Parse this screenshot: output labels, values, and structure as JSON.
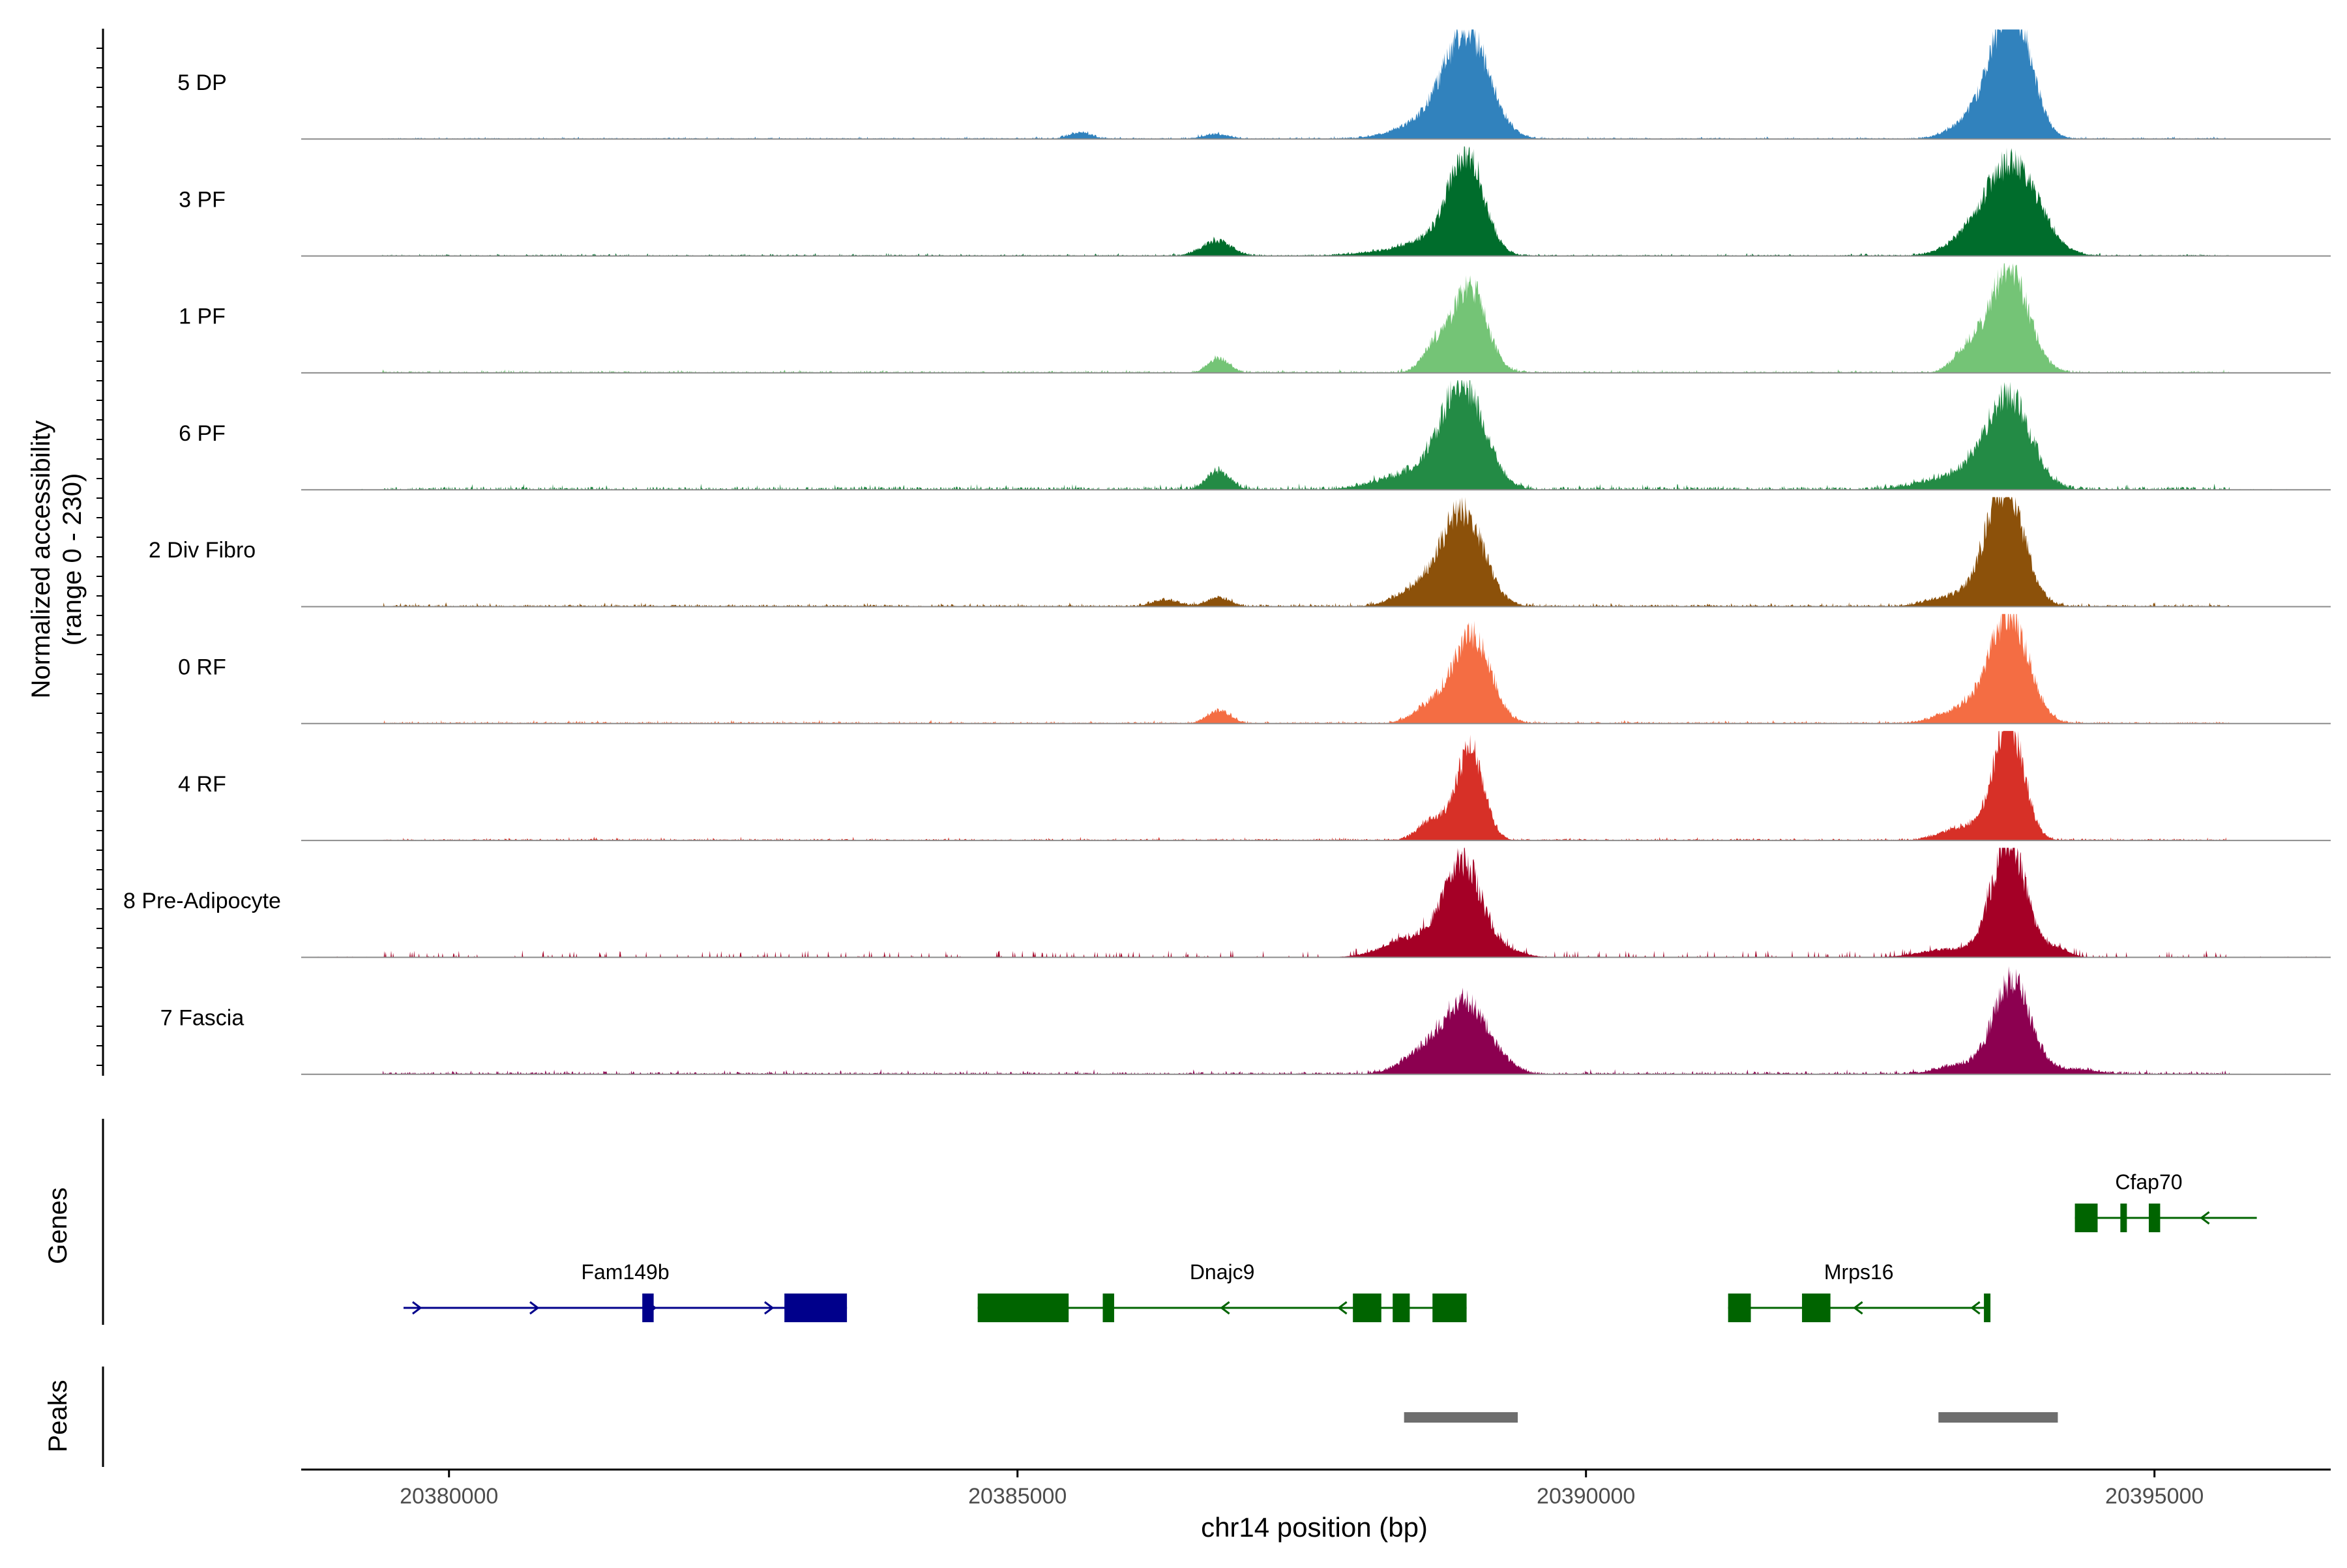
{
  "chart_data": {
    "type": "area",
    "title": "",
    "ylabel": "Normalized accessibility",
    "ylabel_range": "(range 0 - 230)",
    "xlabel": "chr14 position (bp)",
    "xlim": [
      20378700,
      20396550
    ],
    "ylim": [
      0,
      230
    ],
    "x_ticks": [
      {
        "value": 20380000,
        "label": "20380000"
      },
      {
        "value": 20385000,
        "label": "20385000"
      },
      {
        "value": 20390000,
        "label": "20390000"
      },
      {
        "value": 20395000,
        "label": "20395000"
      }
    ],
    "tracks": [
      {
        "name": "5 DP",
        "color": "#3182bd",
        "peaks": [
          [
            20385550,
            14,
            100
          ],
          [
            20386750,
            10,
            120
          ],
          [
            20388700,
            45,
            300
          ],
          [
            20388960,
            205,
            190
          ],
          [
            20393300,
            18,
            160
          ],
          [
            20393630,
            85,
            200
          ],
          [
            20393760,
            225,
            160
          ]
        ],
        "baseline": 2.0,
        "noise": 1.2
      },
      {
        "name": "3 PF",
        "color": "#006d2c",
        "peaks": [
          [
            20386750,
            32,
            130
          ],
          [
            20388200,
            6,
            300
          ],
          [
            20388680,
            35,
            260
          ],
          [
            20388950,
            205,
            150
          ],
          [
            20393350,
            25,
            200
          ],
          [
            20393750,
            200,
            230
          ]
        ],
        "baseline": 2.0,
        "noise": 1.2
      },
      {
        "name": "1 PF",
        "color": "#74c476",
        "peaks": [
          [
            20386770,
            32,
            90
          ],
          [
            20388650,
            50,
            100
          ],
          [
            20388970,
            190,
            150
          ],
          [
            20393350,
            45,
            120
          ],
          [
            20393720,
            225,
            170
          ]
        ],
        "baseline": 2.5,
        "noise": 1.5
      },
      {
        "name": "6 PF",
        "color": "#238b45",
        "peaks": [
          [
            20386770,
            40,
            100
          ],
          [
            20388500,
            35,
            300
          ],
          [
            20388920,
            215,
            190
          ],
          [
            20393300,
            32,
            300
          ],
          [
            20393720,
            195,
            190
          ]
        ],
        "baseline": 4.5,
        "noise": 2.5
      },
      {
        "name": "2 Div Fibro",
        "color": "#8c510a",
        "peaks": [
          [
            20386300,
            14,
            120
          ],
          [
            20386770,
            20,
            100
          ],
          [
            20388550,
            40,
            200
          ],
          [
            20388920,
            200,
            180
          ],
          [
            20393200,
            20,
            200
          ],
          [
            20393680,
            250,
            170
          ]
        ],
        "baseline": 3.0,
        "noise": 1.8
      },
      {
        "name": "0 RF",
        "color": "#f46d43",
        "peaks": [
          [
            20386770,
            28,
            100
          ],
          [
            20388650,
            40,
            150
          ],
          [
            20389000,
            190,
            160
          ],
          [
            20393300,
            30,
            200
          ],
          [
            20393720,
            230,
            170
          ]
        ],
        "baseline": 2.5,
        "noise": 1.5
      },
      {
        "name": "4 RF",
        "color": "#d73027",
        "peaks": [
          [
            20388650,
            45,
            120
          ],
          [
            20388980,
            195,
            120
          ],
          [
            20393350,
            30,
            200
          ],
          [
            20393720,
            250,
            130
          ]
        ],
        "baseline": 2.5,
        "noise": 1.5
      },
      {
        "name": "8 Pre-Adipocyte",
        "color": "#a50026",
        "peaks": [
          [
            20388500,
            45,
            250
          ],
          [
            20388920,
            200,
            160
          ],
          [
            20389300,
            15,
            150
          ],
          [
            20393200,
            18,
            250
          ],
          [
            20393720,
            250,
            150
          ],
          [
            20394150,
            20,
            100
          ]
        ],
        "baseline": 0.0,
        "noise": 5.0
      },
      {
        "name": "7 Fascia",
        "color": "#8c0050",
        "peaks": [
          [
            20388600,
            50,
            200
          ],
          [
            20388950,
            150,
            180
          ],
          [
            20389300,
            15,
            120
          ],
          [
            20393300,
            20,
            200
          ],
          [
            20393750,
            200,
            160
          ],
          [
            20394300,
            10,
            200
          ]
        ],
        "baseline": 3.0,
        "noise": 2.5
      }
    ],
    "genes": {
      "label": "Genes",
      "items": [
        {
          "name": "Fam149b",
          "color": "#00008b",
          "strand": "+",
          "start": 20379600,
          "end": 20383500,
          "exons": [
            [
              20381700,
              20381800
            ],
            [
              20382950,
              20383500
            ]
          ]
        },
        {
          "name": "Dnajc9",
          "color": "#006400",
          "strand": "-",
          "start": 20384650,
          "end": 20388950,
          "exons": [
            [
              20384650,
              20385450
            ],
            [
              20385750,
              20385850
            ],
            [
              20387950,
              20388200
            ],
            [
              20388300,
              20388450
            ],
            [
              20388650,
              20388950
            ]
          ]
        },
        {
          "name": "Mrps16",
          "color": "#006400",
          "strand": "-",
          "start": 20391250,
          "end": 20393550,
          "exons": [
            [
              20391250,
              20391450
            ],
            [
              20391900,
              20392150
            ],
            [
              20393500,
              20393550
            ]
          ]
        },
        {
          "name": "Cfap70",
          "color": "#006400",
          "strand": "-",
          "start": 20394300,
          "end": 20395900,
          "exons": [
            [
              20394300,
              20394500
            ],
            [
              20394700,
              20394740
            ],
            [
              20394950,
              20395050
            ]
          ]
        }
      ]
    },
    "peaks_track": {
      "label": "Peaks",
      "color": "#6e6e6e",
      "regions": [
        [
          20388400,
          20389400
        ],
        [
          20393100,
          20394150
        ]
      ]
    }
  }
}
